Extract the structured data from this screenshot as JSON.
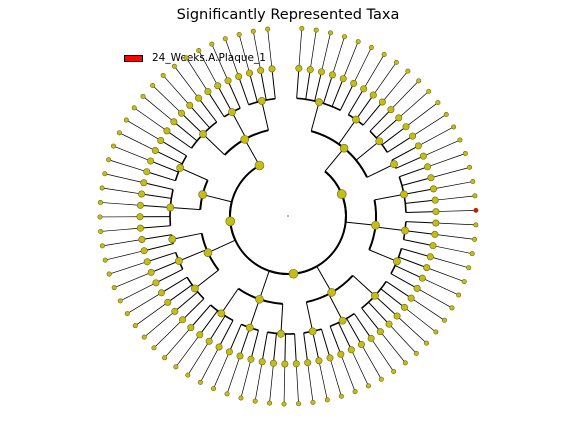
{
  "title": "Significantly Represented Taxa",
  "legend": {
    "label": "24_Weeks.A.Plaque_1",
    "color": "#ff0000"
  },
  "colors": {
    "node_fill": "#c3bd18",
    "node_stroke": "#6b6610",
    "highlight": "#ff0000",
    "line": "#000000"
  },
  "cladogram": {
    "levels": 6,
    "leaf_count": 80,
    "highlighted_leaf": 19,
    "clades": [
      {
        "span": 27,
        "groups": [
          [
            6,
            3,
            4,
            2
          ],
          [
            5,
            3,
            4
          ]
        ]
      },
      {
        "span": 23,
        "groups": [
          [
            5,
            4,
            3
          ],
          [
            4,
            3,
            4
          ]
        ]
      },
      {
        "span": 18,
        "groups": [
          [
            4,
            3,
            2
          ],
          [
            5,
            4
          ]
        ]
      },
      {
        "span": 12,
        "groups": [
          [
            5,
            3,
            4
          ]
        ]
      }
    ]
  }
}
